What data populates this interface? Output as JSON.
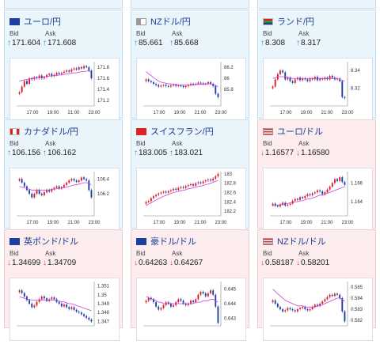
{
  "labels": {
    "bid": "Bid",
    "ask": "Ask"
  },
  "colors": {
    "up": "#1a8fd8",
    "down": "#d9534f",
    "candle_up": "#d61f2a",
    "candle_down": "#1f3fa8",
    "ma": "#c842d6"
  },
  "cards": [
    {
      "pair": "ユーロ/円",
      "flag": "eu-flag",
      "dir": "up",
      "bid": "171.604",
      "ask": "171.608",
      "chart_data": {
        "type": "candlestick",
        "x_ticks": [
          "17:00",
          "19:00",
          "21:00",
          "23:00"
        ],
        "y_ticks": [
          "171.8",
          "171.6",
          "171.4",
          "171.2"
        ],
        "ylim": [
          171.1,
          171.9
        ],
        "close": [
          171.35,
          171.45,
          171.55,
          171.5,
          171.6,
          171.58,
          171.62,
          171.6,
          171.65,
          171.6,
          171.62,
          171.66,
          171.68,
          171.64,
          171.66,
          171.7,
          171.68,
          171.7,
          171.72,
          171.74,
          171.72,
          171.76,
          171.78,
          171.76,
          171.8,
          171.78,
          171.82,
          171.8,
          171.74,
          171.6
        ],
        "ma": [
          171.55,
          171.56,
          171.57,
          171.58,
          171.59,
          171.6,
          171.6,
          171.61,
          171.62,
          171.62,
          171.63,
          171.63,
          171.64,
          171.64,
          171.65,
          171.65,
          171.66,
          171.66,
          171.67,
          171.68,
          171.68,
          171.69,
          171.7,
          171.7,
          171.71,
          171.72,
          171.72,
          171.73,
          171.73,
          171.72
        ]
      }
    },
    {
      "pair": "NZドル/円",
      "flag": "nz-flag",
      "dir": "up",
      "bid": "85.661",
      "ask": "85.668",
      "chart_data": {
        "type": "candlestick",
        "x_ticks": [
          "17:00",
          "19:00",
          "21:00",
          "23:00"
        ],
        "y_ticks": [
          "86.2",
          "86",
          "85.8"
        ],
        "ylim": [
          85.5,
          86.3
        ],
        "close": [
          85.98,
          85.95,
          85.93,
          85.9,
          85.88,
          85.85,
          85.87,
          85.88,
          85.86,
          85.85,
          85.87,
          85.88,
          85.86,
          85.87,
          85.86,
          85.84,
          85.86,
          85.88,
          85.9,
          85.89,
          85.9,
          85.92,
          85.91,
          85.9,
          85.9,
          85.93,
          85.9,
          85.86,
          85.72,
          85.66
        ],
        "ma": [
          86.12,
          86.08,
          86.05,
          86.01,
          85.98,
          85.95,
          85.93,
          85.92,
          85.91,
          85.9,
          85.9,
          85.89,
          85.89,
          85.88,
          85.88,
          85.88,
          85.88,
          85.88,
          85.88,
          85.88,
          85.89,
          85.89,
          85.89,
          85.89,
          85.9,
          85.9,
          85.9,
          85.89,
          85.87,
          85.85
        ]
      }
    },
    {
      "pair": "ランド/円",
      "flag": "za-flag",
      "dir": "up",
      "bid": "8.308",
      "ask": "8.317",
      "chart_data": {
        "type": "candlestick",
        "x_ticks": [
          "17:00",
          "19:00",
          "21:00",
          "23:00"
        ],
        "y_ticks": [
          "8.34",
          "8.32"
        ],
        "ylim": [
          8.3,
          8.35
        ],
        "close": [
          8.322,
          8.33,
          8.336,
          8.34,
          8.338,
          8.33,
          8.332,
          8.328,
          8.326,
          8.33,
          8.332,
          8.329,
          8.331,
          8.33,
          8.328,
          8.331,
          8.33,
          8.333,
          8.329,
          8.331,
          8.33,
          8.332,
          8.33,
          8.334,
          8.332,
          8.33,
          8.331,
          8.328,
          8.31,
          8.309
        ],
        "ma": [
          8.331,
          8.332,
          8.333,
          8.333,
          8.333,
          8.333,
          8.332,
          8.332,
          8.331,
          8.331,
          8.331,
          8.331,
          8.331,
          8.331,
          8.331,
          8.331,
          8.331,
          8.331,
          8.331,
          8.331,
          8.331,
          8.331,
          8.331,
          8.331,
          8.331,
          8.331,
          8.331,
          8.33,
          8.329,
          8.328
        ]
      }
    },
    {
      "pair": "カナダドル/円",
      "flag": "ca-flag",
      "dir": "up",
      "bid": "106.156",
      "ask": "106.162",
      "chart_data": {
        "type": "candlestick",
        "x_ticks": [
          "17:00",
          "19:00",
          "21:00",
          "23:00"
        ],
        "y_ticks": [
          "106.4",
          "106.2"
        ],
        "ylim": [
          105.9,
          106.5
        ],
        "close": [
          106.4,
          106.35,
          106.3,
          106.25,
          106.2,
          106.15,
          106.2,
          106.25,
          106.2,
          106.18,
          106.22,
          106.25,
          106.23,
          106.26,
          106.28,
          106.3,
          106.27,
          106.29,
          106.32,
          106.35,
          106.38,
          106.4,
          106.38,
          106.36,
          106.38,
          106.42,
          106.4,
          106.38,
          106.25,
          106.15
        ],
        "ma": [
          106.3,
          106.29,
          106.28,
          106.27,
          106.26,
          106.25,
          106.25,
          106.25,
          106.25,
          106.25,
          106.25,
          106.25,
          106.25,
          106.26,
          106.26,
          106.27,
          106.27,
          106.28,
          106.28,
          106.29,
          106.3,
          106.31,
          106.32,
          106.32,
          106.33,
          106.34,
          106.35,
          106.35,
          106.34,
          106.32
        ]
      }
    },
    {
      "pair": "スイスフラン/円",
      "flag": "ch-flag",
      "dir": "up",
      "bid": "183.005",
      "ask": "183.021",
      "chart_data": {
        "type": "candlestick",
        "x_ticks": [
          "17:00",
          "19:00",
          "21:00",
          "23:00"
        ],
        "y_ticks": [
          "183",
          "182.8",
          "182.6",
          "182.4",
          "182.2"
        ],
        "ylim": [
          182.1,
          183.05
        ],
        "close": [
          182.4,
          182.42,
          182.48,
          182.52,
          182.55,
          182.58,
          182.6,
          182.62,
          182.6,
          182.63,
          182.65,
          182.68,
          182.66,
          182.7,
          182.72,
          182.7,
          182.74,
          182.76,
          182.78,
          182.75,
          182.8,
          182.82,
          182.8,
          182.84,
          182.86,
          182.88,
          182.86,
          182.9,
          182.95,
          183.0
        ],
        "ma": [
          182.32,
          182.35,
          182.38,
          182.41,
          182.44,
          182.47,
          182.49,
          182.52,
          182.54,
          182.56,
          182.58,
          182.6,
          182.61,
          182.63,
          182.64,
          182.65,
          182.66,
          182.68,
          182.69,
          182.7,
          182.72,
          182.73,
          182.74,
          182.75,
          182.77,
          182.78,
          182.8,
          182.82,
          182.84,
          182.86
        ]
      }
    },
    {
      "pair": "ユーロ/ドル",
      "flag": "us-flag",
      "dir": "down",
      "bid": "1.16577",
      "ask": "1.16580",
      "chart_data": {
        "type": "candlestick",
        "x_ticks": [
          "17:00",
          "19:00",
          "21:00",
          "23:00"
        ],
        "y_ticks": [
          "1.166",
          "1.164"
        ],
        "ylim": [
          1.1625,
          1.1672
        ],
        "close": [
          1.1638,
          1.1636,
          1.1635,
          1.1637,
          1.1639,
          1.1636,
          1.1637,
          1.1638,
          1.1641,
          1.1643,
          1.1642,
          1.1645,
          1.1644,
          1.1646,
          1.1648,
          1.1647,
          1.1649,
          1.165,
          1.1652,
          1.1651,
          1.1648,
          1.165,
          1.1653,
          1.1656,
          1.166,
          1.1664,
          1.1662,
          1.1666,
          1.1661,
          1.1658
        ],
        "ma": [
          1.1636,
          1.1636,
          1.1636,
          1.1637,
          1.1637,
          1.1638,
          1.1638,
          1.1639,
          1.1639,
          1.164,
          1.164,
          1.1641,
          1.1641,
          1.1642,
          1.1643,
          1.1643,
          1.1644,
          1.1645,
          1.1646,
          1.1647,
          1.1647,
          1.1648,
          1.1649,
          1.165,
          1.1651,
          1.1652,
          1.1653,
          1.1654,
          1.1655,
          1.1656
        ]
      }
    },
    {
      "pair": "英ポンド/ドル",
      "flag": "gb-flag",
      "dir": "down",
      "bid": "1.34699",
      "ask": "1.34709",
      "chart_data": {
        "type": "candlestick",
        "x_ticks": [],
        "y_ticks": [
          "1.351",
          "1.35",
          "1.349",
          "1.348",
          "1.347"
        ],
        "ylim": [
          1.3465,
          1.3515
        ],
        "close": [
          1.3505,
          1.3502,
          1.3498,
          1.3494,
          1.349,
          1.3486,
          1.3488,
          1.3492,
          1.3495,
          1.3498,
          1.3496,
          1.3493,
          1.3495,
          1.3497,
          1.3495,
          1.3492,
          1.349,
          1.3487,
          1.3489,
          1.3486,
          1.3484,
          1.3486,
          1.3483,
          1.3481,
          1.348,
          1.3478,
          1.3476,
          1.3474,
          1.3472,
          1.347
        ],
        "ma": [
          1.3498,
          1.3497,
          1.3496,
          1.3495,
          1.3495,
          1.3494,
          1.3494,
          1.3494,
          1.3494,
          1.3494,
          1.3494,
          1.3494,
          1.3494,
          1.3494,
          1.3494,
          1.3493,
          1.3493,
          1.3492,
          1.3492,
          1.3491,
          1.349,
          1.349,
          1.3489,
          1.3488,
          1.3487,
          1.3486,
          1.3485,
          1.3484,
          1.3483,
          1.3482
        ]
      }
    },
    {
      "pair": "豪ドル/ドル",
      "flag": "au-flag",
      "dir": "down",
      "bid": "0.64263",
      "ask": "0.64267",
      "chart_data": {
        "type": "candlestick",
        "x_ticks": [],
        "y_ticks": [
          "0.645",
          "0.644",
          "0.643"
        ],
        "ylim": [
          0.6425,
          0.6455
        ],
        "close": [
          0.6442,
          0.6444,
          0.6443,
          0.6441,
          0.6438,
          0.6436,
          0.6437,
          0.6439,
          0.6441,
          0.644,
          0.6438,
          0.6439,
          0.6441,
          0.6443,
          0.6442,
          0.644,
          0.6439,
          0.644,
          0.6442,
          0.6441,
          0.6443,
          0.6446,
          0.6448,
          0.6447,
          0.6445,
          0.6447,
          0.6449,
          0.6446,
          0.6438,
          0.6427
        ],
        "ma": [
          0.6445,
          0.6444,
          0.6443,
          0.6443,
          0.6442,
          0.6441,
          0.6441,
          0.644,
          0.644,
          0.644,
          0.644,
          0.644,
          0.644,
          0.644,
          0.644,
          0.644,
          0.644,
          0.644,
          0.644,
          0.644,
          0.6441,
          0.6441,
          0.6441,
          0.6442,
          0.6442,
          0.6442,
          0.6443,
          0.6443,
          0.6442,
          0.6441
        ]
      }
    },
    {
      "pair": "NZドル/ドル",
      "flag": "us-flag",
      "dir": "down",
      "bid": "0.58187",
      "ask": "0.58201",
      "chart_data": {
        "type": "candlestick",
        "x_ticks": [],
        "y_ticks": [
          "0.585",
          "0.584",
          "0.583",
          "0.582"
        ],
        "ylim": [
          0.5815,
          0.5855
        ],
        "close": [
          0.5838,
          0.5835,
          0.5832,
          0.583,
          0.5828,
          0.5829,
          0.5831,
          0.583,
          0.5829,
          0.5828,
          0.583,
          0.5831,
          0.5832,
          0.583,
          0.5829,
          0.583,
          0.5832,
          0.5834,
          0.5833,
          0.5835,
          0.5837,
          0.5839,
          0.5841,
          0.5843,
          0.5842,
          0.5844,
          0.5843,
          0.584,
          0.5828,
          0.5819
        ],
        "ma": [
          0.5848,
          0.5846,
          0.5844,
          0.5842,
          0.584,
          0.5838,
          0.5837,
          0.5836,
          0.5835,
          0.5834,
          0.5833,
          0.5833,
          0.5833,
          0.5832,
          0.5832,
          0.5832,
          0.5832,
          0.5832,
          0.5833,
          0.5833,
          0.5834,
          0.5835,
          0.5836,
          0.5837,
          0.5838,
          0.5839,
          0.584,
          0.584,
          0.5839,
          0.5837
        ]
      }
    }
  ]
}
